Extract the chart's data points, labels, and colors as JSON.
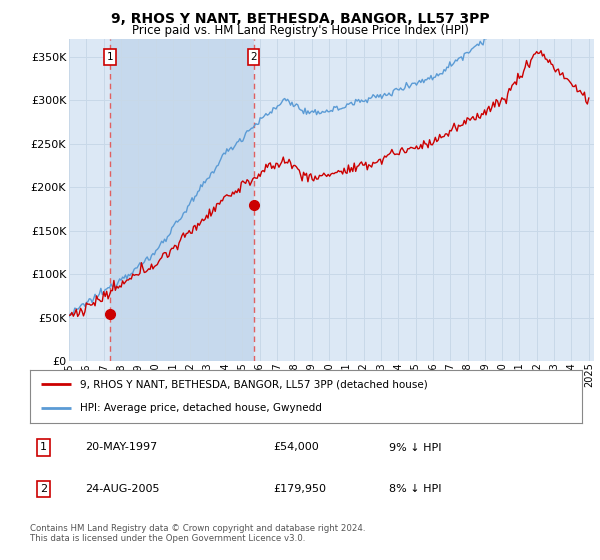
{
  "title": "9, RHOS Y NANT, BETHESDA, BANGOR, LL57 3PP",
  "subtitle": "Price paid vs. HM Land Registry's House Price Index (HPI)",
  "ylabel_ticks": [
    "£0",
    "£50K",
    "£100K",
    "£150K",
    "£200K",
    "£250K",
    "£300K",
    "£350K"
  ],
  "ytick_values": [
    0,
    50000,
    100000,
    150000,
    200000,
    250000,
    300000,
    350000
  ],
  "ylim": [
    0,
    370000
  ],
  "xlim_start": 1995.0,
  "xlim_end": 2025.3,
  "purchase1_x": 1997.38,
  "purchase1_y": 54000,
  "purchase2_x": 2005.65,
  "purchase2_y": 179950,
  "hpi_color": "#5b9bd5",
  "price_color": "#cc0000",
  "vline_color": "#e06060",
  "grid_color": "#c8d8e8",
  "bg_color": "#dce8f5",
  "shade_color": "#c8d8ee",
  "legend_label_price": "9, RHOS Y NANT, BETHESDA, BANGOR, LL57 3PP (detached house)",
  "legend_label_hpi": "HPI: Average price, detached house, Gwynedd",
  "table_row1": [
    "1",
    "20-MAY-1997",
    "£54,000",
    "9% ↓ HPI"
  ],
  "table_row2": [
    "2",
    "24-AUG-2005",
    "£179,950",
    "8% ↓ HPI"
  ],
  "footnote": "Contains HM Land Registry data © Crown copyright and database right 2024.\nThis data is licensed under the Open Government Licence v3.0.",
  "xtick_years": [
    1995,
    1996,
    1997,
    1998,
    1999,
    2000,
    2001,
    2002,
    2003,
    2004,
    2005,
    2006,
    2007,
    2008,
    2009,
    2010,
    2011,
    2012,
    2013,
    2014,
    2015,
    2016,
    2017,
    2018,
    2019,
    2020,
    2021,
    2022,
    2023,
    2024,
    2025
  ]
}
